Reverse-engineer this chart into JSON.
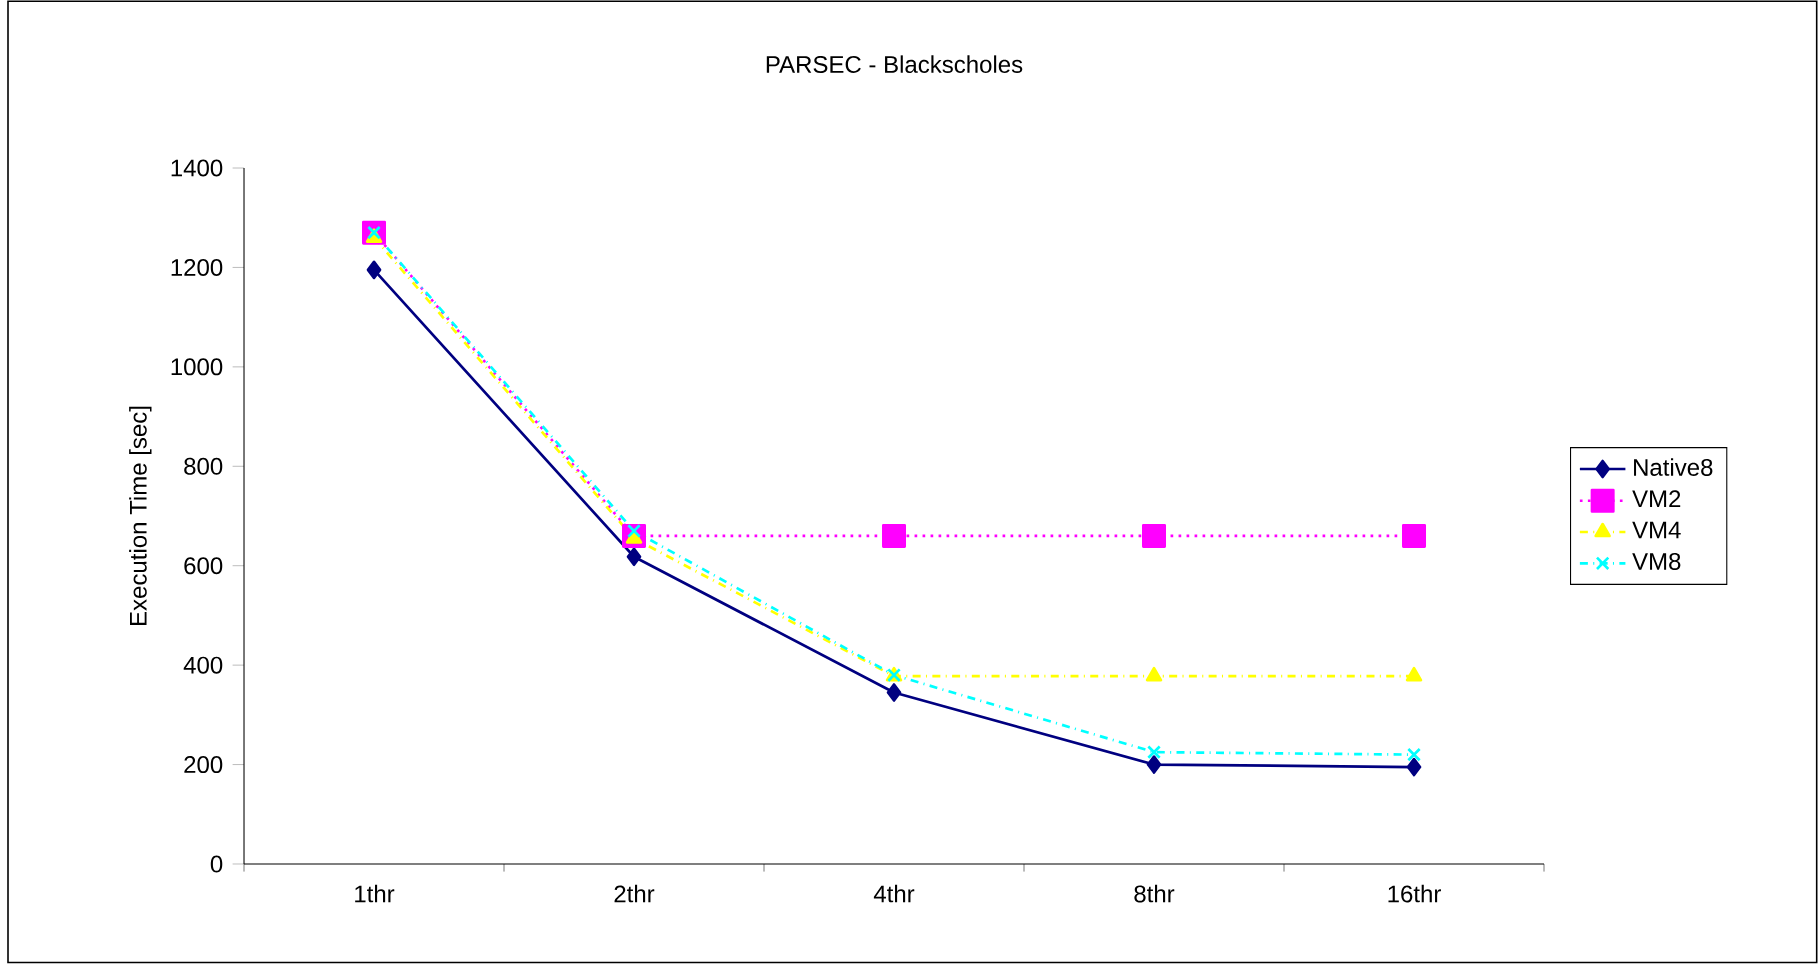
{
  "chart_data": {
    "type": "line",
    "title": "PARSEC - Blackscholes",
    "ylabel": "Execution Time [sec]",
    "categories": [
      "1thr",
      "2thr",
      "4thr",
      "8thr",
      "16thr"
    ],
    "series": [
      {
        "name": "Native8",
        "color": "#000080",
        "marker": "diamond",
        "line_style": "solid",
        "values": [
          1195,
          618,
          345,
          200,
          195
        ]
      },
      {
        "name": "VM2",
        "color": "#ff00ff",
        "marker": "square",
        "line_style": "dotted",
        "values": [
          1270,
          660,
          660,
          660,
          660
        ]
      },
      {
        "name": "VM4",
        "color": "#ffff00",
        "marker": "triangle",
        "line_style": "dashed",
        "values": [
          1260,
          655,
          378,
          378,
          378
        ]
      },
      {
        "name": "VM8",
        "color": "#00ffff",
        "marker": "cross",
        "line_style": "dashed",
        "values": [
          1270,
          670,
          380,
          225,
          220
        ]
      }
    ],
    "ylim": [
      0,
      1400
    ],
    "yticks": [
      0,
      200,
      400,
      600,
      800,
      1000,
      1200,
      1400
    ],
    "grid": false,
    "legend": "right"
  }
}
